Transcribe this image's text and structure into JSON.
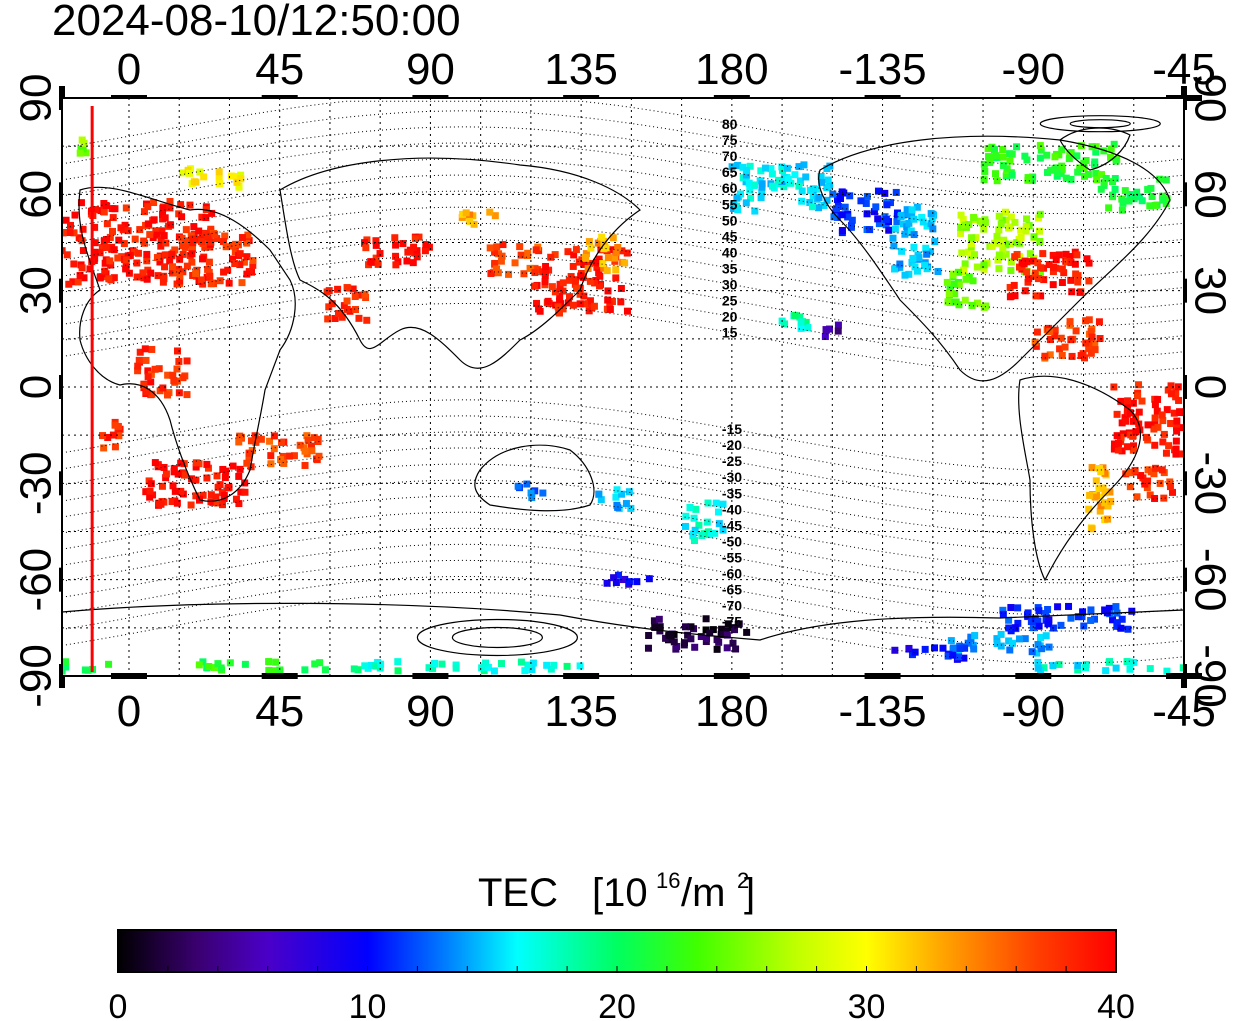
{
  "timestamp": "2024-08-10/12:50:00",
  "axes": {
    "top_lon_labels": [
      "0",
      "45",
      "90",
      "135",
      "180",
      "-135",
      "-90",
      "-45"
    ],
    "bottom_lon_labels": [
      "0",
      "45",
      "90",
      "135",
      "180",
      "-135",
      "-90",
      "-45"
    ],
    "left_lat_labels": [
      "90",
      "60",
      "30",
      "0",
      "-30",
      "-60",
      "-90"
    ],
    "right_lat_labels": [
      "90",
      "60",
      "30",
      "0",
      "-30",
      "-60",
      "-90"
    ],
    "lon_values": [
      0,
      45,
      90,
      135,
      180,
      225,
      270,
      315
    ],
    "lat_values": [
      90,
      60,
      30,
      0,
      -30,
      -60,
      -90
    ],
    "lon_range": [
      -20,
      315
    ],
    "lat_range": [
      -90,
      90
    ]
  },
  "magnetic_latitude_labels": {
    "north": [
      "80",
      "75",
      "70",
      "65",
      "60",
      "55",
      "50",
      "45",
      "40",
      "35",
      "30",
      "25",
      "20",
      "15"
    ],
    "south": [
      "-15",
      "-20",
      "-25",
      "-30",
      "-35",
      "-40",
      "-45",
      "-50",
      "-55",
      "-60",
      "-65",
      "-70",
      "-75"
    ]
  },
  "terminator_longitude": -11,
  "colorbar": {
    "title": "TEC",
    "unit_base": "[10",
    "unit_exp": "16",
    "unit_mid": "/m",
    "unit_exp2": "2",
    "unit_close": "]",
    "tick_labels": [
      "0",
      "10",
      "20",
      "30",
      "40"
    ],
    "range": [
      0,
      40
    ]
  },
  "colors": {
    "terminator": "#ff0000",
    "tec_scale": [
      "#000000",
      "#3a0070",
      "#4b00c8",
      "#0000ff",
      "#0080ff",
      "#00ffff",
      "#00ff60",
      "#40ff00",
      "#c0ff00",
      "#ffff00",
      "#ffa000",
      "#ff4000",
      "#ff0000"
    ]
  },
  "tec_regions": [
    {
      "lon": -5,
      "lat": 45,
      "w": 60,
      "h": 26,
      "tec": 39
    },
    {
      "lon": 25,
      "lat": 40,
      "w": 25,
      "h": 16,
      "tec": 38
    },
    {
      "lon": 80,
      "lat": 42,
      "w": 20,
      "h": 10,
      "tec": 39
    },
    {
      "lon": 115,
      "lat": 40,
      "w": 15,
      "h": 10,
      "tec": 37
    },
    {
      "lon": 135,
      "lat": 33,
      "w": 28,
      "h": 20,
      "tec": 39
    },
    {
      "lon": 142,
      "lat": 42,
      "w": 12,
      "h": 12,
      "tec": 33
    },
    {
      "lon": 20,
      "lat": -30,
      "w": 30,
      "h": 14,
      "tec": 39
    },
    {
      "lon": 10,
      "lat": 5,
      "w": 15,
      "h": 15,
      "tec": 38
    },
    {
      "lon": 45,
      "lat": -20,
      "w": 25,
      "h": 10,
      "tec": 37
    },
    {
      "lon": -5,
      "lat": -15,
      "w": 8,
      "h": 8,
      "tec": 38
    },
    {
      "lon": 65,
      "lat": 25,
      "w": 12,
      "h": 12,
      "tec": 38
    },
    {
      "lon": -165,
      "lat": 62,
      "w": 30,
      "h": 15,
      "tec": 16
    },
    {
      "lon": -140,
      "lat": 55,
      "w": 20,
      "h": 14,
      "tec": 11
    },
    {
      "lon": -125,
      "lat": 45,
      "w": 14,
      "h": 22,
      "tec": 15
    },
    {
      "lon": -100,
      "lat": 45,
      "w": 25,
      "h": 20,
      "tec": 26
    },
    {
      "lon": -85,
      "lat": 35,
      "w": 25,
      "h": 14,
      "tec": 39
    },
    {
      "lon": -110,
      "lat": 30,
      "w": 12,
      "h": 12,
      "tec": 24
    },
    {
      "lon": -80,
      "lat": 15,
      "w": 20,
      "h": 12,
      "tec": 37
    },
    {
      "lon": -85,
      "lat": 70,
      "w": 40,
      "h": 12,
      "tec": 22
    },
    {
      "lon": -60,
      "lat": 60,
      "w": 20,
      "h": 10,
      "tec": 21
    },
    {
      "lon": -55,
      "lat": -10,
      "w": 22,
      "h": 22,
      "tec": 39
    },
    {
      "lon": -55,
      "lat": -30,
      "w": 15,
      "h": 10,
      "tec": 38
    },
    {
      "lon": -70,
      "lat": -35,
      "w": 8,
      "h": 20,
      "tec": 33
    },
    {
      "lon": -160,
      "lat": 20,
      "w": 10,
      "h": 6,
      "tec": 18
    },
    {
      "lon": -150,
      "lat": 18,
      "w": 5,
      "h": 5,
      "tec": 5
    },
    {
      "lon": 172,
      "lat": -42,
      "w": 12,
      "h": 12,
      "tec": 17
    },
    {
      "lon": 145,
      "lat": -35,
      "w": 12,
      "h": 6,
      "tec": 15
    },
    {
      "lon": 120,
      "lat": -32,
      "w": 8,
      "h": 5,
      "tec": 13
    },
    {
      "lon": 150,
      "lat": -60,
      "w": 15,
      "h": 4,
      "tec": 9
    },
    {
      "lon": 170,
      "lat": -77,
      "w": 30,
      "h": 10,
      "tec": 2
    },
    {
      "lon": -80,
      "lat": -72,
      "w": 40,
      "h": 8,
      "tec": 11
    },
    {
      "lon": -100,
      "lat": -80,
      "w": 30,
      "h": 6,
      "tec": 14
    },
    {
      "lon": -120,
      "lat": -83,
      "w": 25,
      "h": 4,
      "tec": 10
    },
    {
      "lon": 100,
      "lat": -87,
      "w": 70,
      "h": 3,
      "tec": 18
    },
    {
      "lon": 40,
      "lat": -87,
      "w": 40,
      "h": 3,
      "tec": 22
    },
    {
      "lon": -60,
      "lat": -87,
      "w": 60,
      "h": 3,
      "tec": 17
    },
    {
      "lon": -15,
      "lat": -87,
      "w": 20,
      "h": 3,
      "tec": 21
    },
    {
      "lon": -15,
      "lat": 75,
      "w": 5,
      "h": 5,
      "tec": 25
    },
    {
      "lon": 25,
      "lat": 65,
      "w": 20,
      "h": 6,
      "tec": 30
    },
    {
      "lon": 105,
      "lat": 52,
      "w": 12,
      "h": 5,
      "tec": 33
    }
  ]
}
